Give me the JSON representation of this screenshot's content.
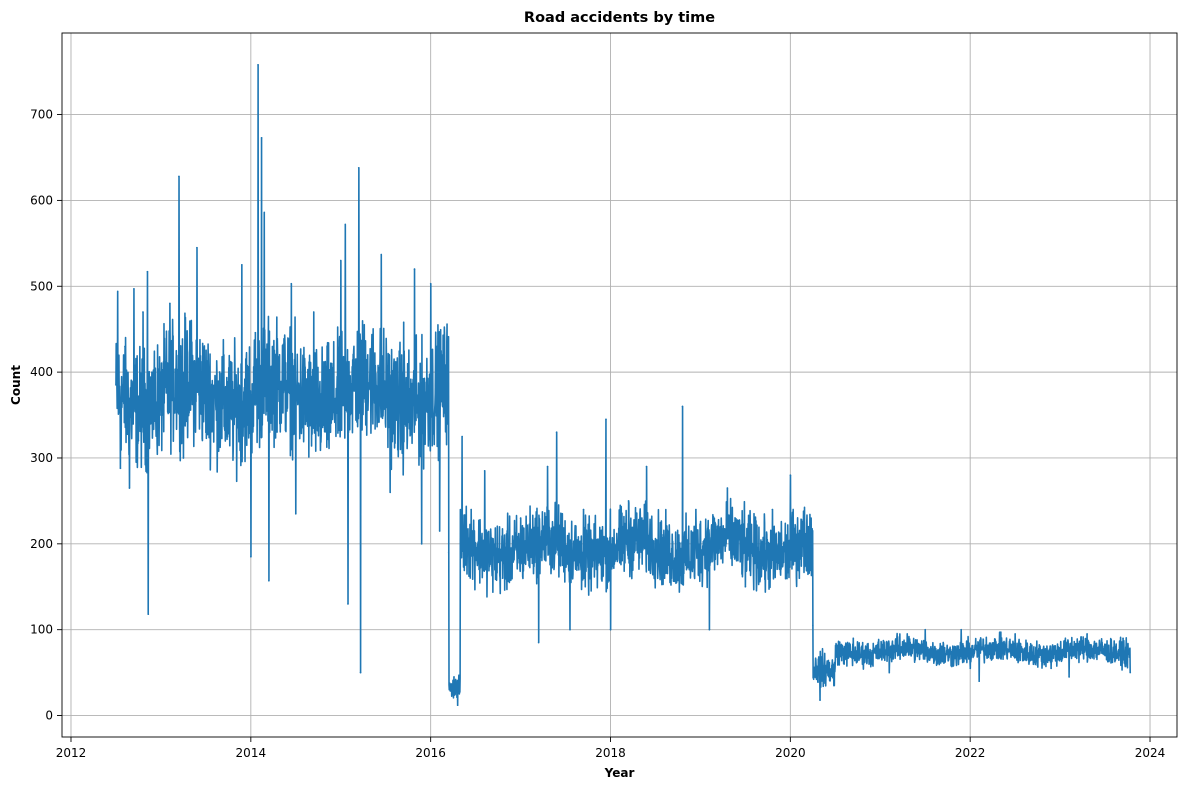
{
  "chart_data": {
    "type": "line",
    "title": "Road accidents by time",
    "xlabel": "Year",
    "ylabel": "Count",
    "xlim": [
      2011.9,
      2024.3
    ],
    "ylim": [
      -25,
      795
    ],
    "xticks": [
      2012,
      2014,
      2016,
      2018,
      2020,
      2022,
      2024
    ],
    "yticks": [
      0,
      100,
      200,
      300,
      400,
      500,
      600,
      700
    ],
    "grid": true,
    "line_color": "#1f77b4",
    "series": [
      {
        "x_start": 2012.5,
        "x_end": 2023.78,
        "description_points": [
          [
            2012.5,
            385
          ],
          [
            2012.52,
            494
          ],
          [
            2012.55,
            288
          ],
          [
            2012.6,
            430
          ],
          [
            2012.65,
            265
          ],
          [
            2012.7,
            497
          ],
          [
            2012.75,
            320
          ],
          [
            2012.8,
            470
          ],
          [
            2012.85,
            517
          ],
          [
            2012.86,
            118
          ],
          [
            2012.9,
            400
          ],
          [
            2013.0,
            350
          ],
          [
            2013.1,
            480
          ],
          [
            2013.2,
            628
          ],
          [
            2013.25,
            300
          ],
          [
            2013.4,
            545
          ],
          [
            2013.5,
            330
          ],
          [
            2013.7,
            420
          ],
          [
            2013.9,
            525
          ],
          [
            2014.0,
            185
          ],
          [
            2014.05,
            446
          ],
          [
            2014.08,
            758
          ],
          [
            2014.12,
            673
          ],
          [
            2014.15,
            586
          ],
          [
            2014.2,
            157
          ],
          [
            2014.3,
            380
          ],
          [
            2014.45,
            503
          ],
          [
            2014.5,
            235
          ],
          [
            2014.7,
            470
          ],
          [
            2014.9,
            410
          ],
          [
            2015.0,
            530
          ],
          [
            2015.05,
            572
          ],
          [
            2015.08,
            130
          ],
          [
            2015.2,
            638
          ],
          [
            2015.22,
            50
          ],
          [
            2015.3,
            420
          ],
          [
            2015.45,
            537
          ],
          [
            2015.55,
            260
          ],
          [
            2015.7,
            458
          ],
          [
            2015.82,
            520
          ],
          [
            2015.9,
            200
          ],
          [
            2016.0,
            503
          ],
          [
            2016.1,
            215
          ],
          [
            2016.18,
            435
          ],
          [
            2016.2,
            190
          ],
          [
            2016.22,
            30
          ],
          [
            2016.26,
            45
          ],
          [
            2016.3,
            12
          ],
          [
            2016.35,
            325
          ],
          [
            2016.45,
            240
          ],
          [
            2016.6,
            285
          ],
          [
            2016.8,
            160
          ],
          [
            2017.0,
            230
          ],
          [
            2017.2,
            85
          ],
          [
            2017.3,
            290
          ],
          [
            2017.4,
            330
          ],
          [
            2017.55,
            100
          ],
          [
            2017.7,
            240
          ],
          [
            2017.95,
            345
          ],
          [
            2018.0,
            100
          ],
          [
            2018.2,
            250
          ],
          [
            2018.4,
            290
          ],
          [
            2018.6,
            160
          ],
          [
            2018.8,
            360
          ],
          [
            2018.95,
            240
          ],
          [
            2019.1,
            100
          ],
          [
            2019.3,
            265
          ],
          [
            2019.5,
            150
          ],
          [
            2019.8,
            240
          ],
          [
            2020.0,
            280
          ],
          [
            2020.1,
            160
          ],
          [
            2020.2,
            220
          ],
          [
            2020.25,
            105
          ],
          [
            2020.3,
            45
          ],
          [
            2020.33,
            18
          ],
          [
            2020.5,
            65
          ],
          [
            2020.7,
            90
          ],
          [
            2020.9,
            70
          ],
          [
            2021.1,
            50
          ],
          [
            2021.3,
            95
          ],
          [
            2021.5,
            100
          ],
          [
            2021.7,
            85
          ],
          [
            2021.9,
            100
          ],
          [
            2022.0,
            55
          ],
          [
            2022.1,
            40
          ],
          [
            2022.3,
            80
          ],
          [
            2022.5,
            95
          ],
          [
            2022.7,
            70
          ],
          [
            2022.9,
            55
          ],
          [
            2023.1,
            45
          ],
          [
            2023.3,
            95
          ],
          [
            2023.5,
            70
          ],
          [
            2023.7,
            90
          ],
          [
            2023.78,
            50
          ]
        ]
      }
    ]
  }
}
